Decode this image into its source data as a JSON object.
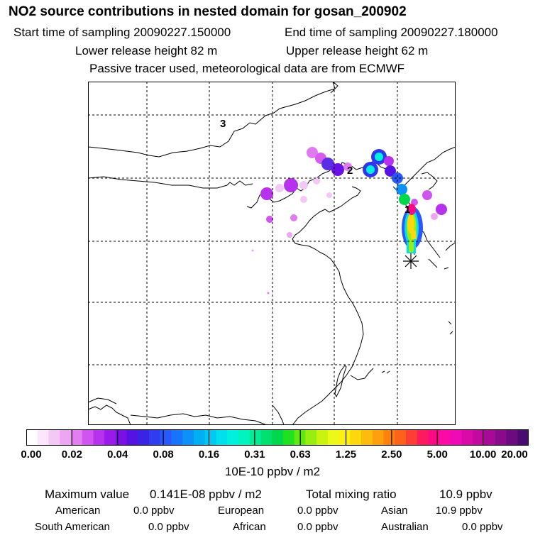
{
  "header": {
    "title": "NO2 source contributions in nested domain for gosan_200902",
    "start_label": "Start time of sampling 20090227.150000",
    "end_label": "End time of sampling 20090227.180000",
    "lower_label": "Lower release height   82 m",
    "upper_label": "Upper release height   62 m",
    "note": "Passive tracer used, meteorological data are from ECMWF"
  },
  "map": {
    "contour_labels": [
      "3",
      "2",
      "1"
    ],
    "release_marker": "asterisk-icon"
  },
  "colorbar": {
    "ticks": [
      "0.00",
      "0.02",
      "0.04",
      "0.08",
      "0.16",
      "0.31",
      "0.63",
      "1.25",
      "2.50",
      "5.00",
      "10.00",
      "20.00"
    ],
    "unit": "10E-10 ppbv / m2",
    "colors": [
      "#ffffff",
      "#fbe6fb",
      "#f4c8f6",
      "#eda7f2",
      "#e27ef0",
      "#cf55ee",
      "#b632ec",
      "#9a1aea",
      "#7a10e6",
      "#5512e2",
      "#3a24e4",
      "#2f3cf0",
      "#2a58fa",
      "#1874fa",
      "#0c92f6",
      "#00aef4",
      "#00c8f2",
      "#00e0ec",
      "#00f0e0",
      "#00f4c0",
      "#00ec98",
      "#00e070",
      "#00d84c",
      "#20e020",
      "#60e810",
      "#98ee10",
      "#c8f410",
      "#ecf818",
      "#fcf010",
      "#fcd80c",
      "#fcbc0c",
      "#fca00c",
      "#fc820c",
      "#fc621a",
      "#fc3e34",
      "#fc1c5e",
      "#fc0a84",
      "#fc0aa8",
      "#ee0ab4",
      "#da0aa8",
      "#c20aa0",
      "#a60a96",
      "#8a0a8c",
      "#6c0a80",
      "#4a0a70"
    ]
  },
  "stats": {
    "max_label": "Maximum value",
    "max_value": "0.141E-08 ppbv / m2",
    "total_label": "Total mixing ratio",
    "total_value": "10.9 ppbv",
    "regions": [
      {
        "name": "American",
        "value": "0.0 ppbv"
      },
      {
        "name": "European",
        "value": "0.0 ppbv"
      },
      {
        "name": "Asian",
        "value": "10.9 ppbv"
      },
      {
        "name": "South American",
        "value": "0.0 ppbv"
      },
      {
        "name": "African",
        "value": "0.0 ppbv"
      },
      {
        "name": "Australian",
        "value": "0.0 ppbv"
      }
    ]
  }
}
